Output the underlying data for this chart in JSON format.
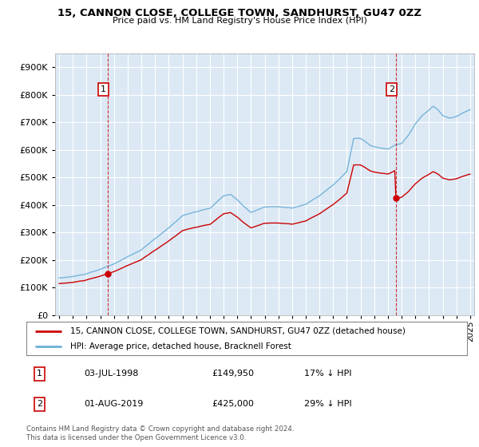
{
  "title": "15, CANNON CLOSE, COLLEGE TOWN, SANDHURST, GU47 0ZZ",
  "subtitle": "Price paid vs. HM Land Registry's House Price Index (HPI)",
  "legend_line1": "15, CANNON CLOSE, COLLEGE TOWN, SANDHURST, GU47 0ZZ (detached house)",
  "legend_line2": "HPI: Average price, detached house, Bracknell Forest",
  "annotation1_label": "1",
  "annotation1_date": "03-JUL-1998",
  "annotation1_price": "£149,950",
  "annotation1_note": "17% ↓ HPI",
  "annotation2_label": "2",
  "annotation2_date": "01-AUG-2019",
  "annotation2_price": "£425,000",
  "annotation2_note": "29% ↓ HPI",
  "footer": "Contains HM Land Registry data © Crown copyright and database right 2024.\nThis data is licensed under the Open Government Licence v3.0.",
  "hpi_color": "#6baed6",
  "price_color": "#cc0000",
  "background_color": "#ffffff",
  "plot_bg_color": "#dce9f5",
  "grid_color": "#ffffff",
  "ylim": [
    0,
    950000
  ],
  "yticks": [
    0,
    100000,
    200000,
    300000,
    400000,
    500000,
    600000,
    700000,
    800000,
    900000
  ],
  "sale1_x": 1998.54,
  "sale1_y": 149950,
  "sale2_x": 2019.58,
  "sale2_y": 425000,
  "xlim_left": 1994.7,
  "xlim_right": 2025.3
}
